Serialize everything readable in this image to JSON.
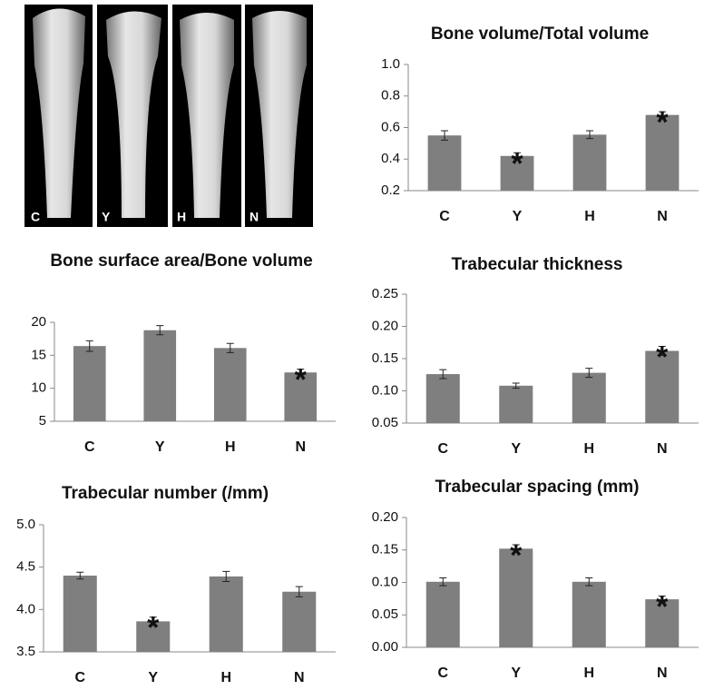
{
  "image_panels": {
    "labels": [
      "C",
      "Y",
      "H",
      "N"
    ]
  },
  "chart_data": [
    {
      "type": "bar",
      "title": "Bone volume/Total volume",
      "categories": [
        "C",
        "Y",
        "H",
        "N"
      ],
      "values": [
        0.55,
        0.42,
        0.555,
        0.68
      ],
      "errors": [
        0.03,
        0.02,
        0.025,
        0.02
      ],
      "significance": [
        null,
        "*",
        null,
        "*"
      ],
      "color": "#7f7f7f",
      "ylim": [
        0.2,
        1.0
      ],
      "yticks": [
        0.2,
        0.4,
        0.6,
        0.8,
        {
          "value": 1,
          "label": "1.0"
        }
      ]
    },
    {
      "type": "bar",
      "title": "Bone surface area/Bone volume",
      "categories": [
        "C",
        "Y",
        "H",
        "N"
      ],
      "values": [
        16.4,
        18.8,
        16.1,
        12.4
      ],
      "errors": [
        0.8,
        0.7,
        0.7,
        0.5
      ],
      "significance": [
        null,
        null,
        null,
        "*"
      ],
      "color": "#7f7f7f",
      "ylim": [
        5,
        20
      ],
      "yticks": [
        5,
        10,
        15,
        20
      ]
    },
    {
      "type": "bar",
      "title": "Trabecular thickness",
      "categories": [
        "C",
        "Y",
        "H",
        "N"
      ],
      "values": [
        0.126,
        0.108,
        0.128,
        0.162
      ],
      "errors": [
        0.007,
        0.004,
        0.007,
        0.007
      ],
      "significance": [
        null,
        null,
        null,
        "*"
      ],
      "color": "#7f7f7f",
      "ylim": [
        0.05,
        0.25
      ],
      "yticks": [
        0.05,
        {
          "value": 0.1,
          "label": "0.10"
        },
        0.15,
        {
          "value": 0.2,
          "label": "0.20"
        },
        0.25
      ]
    },
    {
      "type": "bar",
      "title": "Trabecular number (/mm)",
      "categories": [
        "C",
        "Y",
        "H",
        "N"
      ],
      "values": [
        4.4,
        3.86,
        4.39,
        4.21
      ],
      "errors": [
        0.04,
        0.05,
        0.06,
        0.06
      ],
      "significance": [
        null,
        "*",
        null,
        null
      ],
      "color": "#7f7f7f",
      "ylim": [
        3.5,
        5.0
      ],
      "yticks": [
        3.5,
        {
          "value": 4,
          "label": "4.0"
        },
        4.5,
        {
          "value": 5,
          "label": "5.0"
        }
      ]
    },
    {
      "type": "bar",
      "title": "Trabecular spacing (mm)",
      "categories": [
        "C",
        "Y",
        "H",
        "N"
      ],
      "values": [
        0.101,
        0.152,
        0.101,
        0.074
      ],
      "errors": [
        0.006,
        0.006,
        0.006,
        0.005
      ],
      "significance": [
        null,
        "*",
        null,
        "*"
      ],
      "color": "#7f7f7f",
      "ylim": [
        0,
        0.2
      ],
      "yticks": [
        {
          "value": 0,
          "label": "0.00"
        },
        0.05,
        {
          "value": 0.1,
          "label": "0.10"
        },
        0.15,
        {
          "value": 0.2,
          "label": "0.20"
        }
      ]
    }
  ]
}
